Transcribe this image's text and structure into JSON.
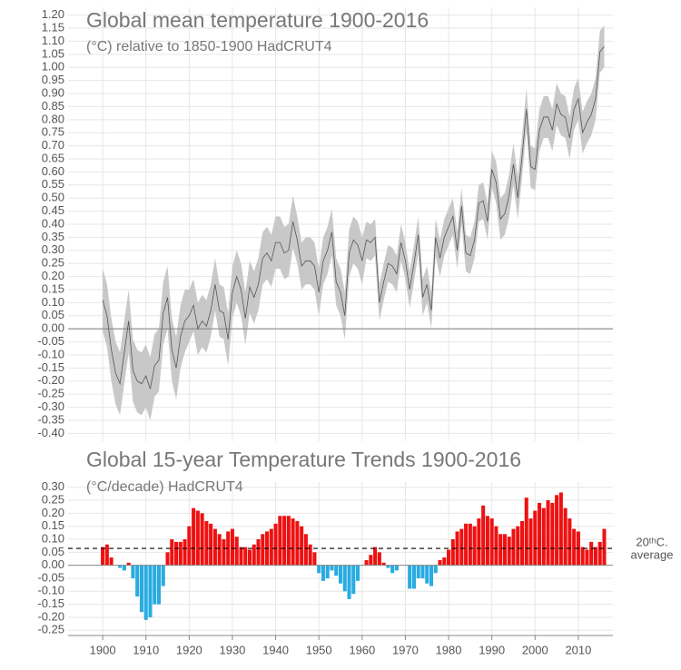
{
  "chart_data": [
    {
      "type": "line",
      "title": "Global mean temperature 1900-2016",
      "subtitle": "(°C) relative to 1850-1900 HadCRUT4",
      "x": [
        1900,
        1901,
        1902,
        1903,
        1904,
        1905,
        1906,
        1907,
        1908,
        1909,
        1910,
        1911,
        1912,
        1913,
        1914,
        1915,
        1916,
        1917,
        1918,
        1919,
        1920,
        1921,
        1922,
        1923,
        1924,
        1925,
        1926,
        1927,
        1928,
        1929,
        1930,
        1931,
        1932,
        1933,
        1934,
        1935,
        1936,
        1937,
        1938,
        1939,
        1940,
        1941,
        1942,
        1943,
        1944,
        1945,
        1946,
        1947,
        1948,
        1949,
        1950,
        1951,
        1952,
        1953,
        1954,
        1955,
        1956,
        1957,
        1958,
        1959,
        1960,
        1961,
        1962,
        1963,
        1964,
        1965,
        1966,
        1967,
        1968,
        1969,
        1970,
        1971,
        1972,
        1973,
        1974,
        1975,
        1976,
        1977,
        1978,
        1979,
        1980,
        1981,
        1982,
        1983,
        1984,
        1985,
        1986,
        1987,
        1988,
        1989,
        1990,
        1991,
        1992,
        1993,
        1994,
        1995,
        1996,
        1997,
        1998,
        1999,
        2000,
        2001,
        2002,
        2003,
        2004,
        2005,
        2006,
        2007,
        2008,
        2009,
        2010,
        2011,
        2012,
        2013,
        2014,
        2015,
        2016
      ],
      "values": [
        0.11,
        0.05,
        -0.08,
        -0.17,
        -0.21,
        -0.09,
        0.03,
        -0.16,
        -0.2,
        -0.21,
        -0.18,
        -0.23,
        -0.14,
        -0.12,
        0.06,
        0.12,
        -0.08,
        -0.15,
        -0.03,
        0.03,
        0.05,
        0.09,
        0.0,
        0.03,
        0.01,
        0.07,
        0.17,
        0.07,
        0.06,
        -0.04,
        0.14,
        0.2,
        0.15,
        0.04,
        0.16,
        0.12,
        0.17,
        0.27,
        0.29,
        0.26,
        0.33,
        0.33,
        0.29,
        0.3,
        0.41,
        0.34,
        0.24,
        0.26,
        0.26,
        0.24,
        0.14,
        0.26,
        0.3,
        0.37,
        0.18,
        0.14,
        0.05,
        0.29,
        0.34,
        0.32,
        0.26,
        0.34,
        0.33,
        0.35,
        0.1,
        0.18,
        0.25,
        0.24,
        0.21,
        0.33,
        0.26,
        0.15,
        0.25,
        0.36,
        0.12,
        0.17,
        0.07,
        0.35,
        0.27,
        0.35,
        0.39,
        0.43,
        0.3,
        0.47,
        0.29,
        0.28,
        0.34,
        0.48,
        0.49,
        0.41,
        0.61,
        0.56,
        0.42,
        0.44,
        0.51,
        0.63,
        0.5,
        0.66,
        0.84,
        0.62,
        0.61,
        0.76,
        0.81,
        0.81,
        0.76,
        0.86,
        0.82,
        0.81,
        0.73,
        0.84,
        0.88,
        0.75,
        0.79,
        0.82,
        0.88,
        1.06,
        1.08
      ],
      "lower": [
        -0.01,
        -0.07,
        -0.2,
        -0.29,
        -0.33,
        -0.21,
        -0.09,
        -0.28,
        -0.32,
        -0.33,
        -0.3,
        -0.35,
        -0.26,
        -0.24,
        -0.06,
        0.0,
        -0.2,
        -0.27,
        -0.15,
        -0.09,
        -0.05,
        -0.01,
        -0.1,
        -0.07,
        -0.09,
        -0.03,
        0.07,
        -0.03,
        -0.04,
        -0.14,
        0.04,
        0.1,
        0.05,
        -0.06,
        0.06,
        0.02,
        0.07,
        0.17,
        0.19,
        0.16,
        0.23,
        0.23,
        0.19,
        0.2,
        0.31,
        0.25,
        0.15,
        0.17,
        0.17,
        0.15,
        0.05,
        0.17,
        0.21,
        0.28,
        0.09,
        0.05,
        -0.04,
        0.2,
        0.25,
        0.23,
        0.17,
        0.27,
        0.26,
        0.28,
        0.03,
        0.11,
        0.18,
        0.17,
        0.14,
        0.26,
        0.19,
        0.08,
        0.18,
        0.29,
        0.05,
        0.1,
        0.0,
        0.28,
        0.2,
        0.28,
        0.32,
        0.36,
        0.23,
        0.4,
        0.22,
        0.21,
        0.27,
        0.41,
        0.42,
        0.34,
        0.54,
        0.48,
        0.34,
        0.36,
        0.43,
        0.55,
        0.42,
        0.58,
        0.76,
        0.54,
        0.53,
        0.68,
        0.73,
        0.73,
        0.68,
        0.78,
        0.74,
        0.73,
        0.65,
        0.76,
        0.8,
        0.67,
        0.71,
        0.74,
        0.8,
        0.98,
        1.0
      ],
      "upper": [
        0.23,
        0.17,
        0.04,
        -0.05,
        -0.09,
        0.03,
        0.15,
        -0.04,
        -0.08,
        -0.09,
        -0.06,
        -0.11,
        -0.02,
        0.0,
        0.18,
        0.24,
        0.04,
        -0.03,
        0.09,
        0.15,
        0.15,
        0.19,
        0.1,
        0.13,
        0.11,
        0.17,
        0.27,
        0.17,
        0.16,
        0.06,
        0.24,
        0.3,
        0.25,
        0.14,
        0.26,
        0.22,
        0.27,
        0.37,
        0.39,
        0.36,
        0.43,
        0.43,
        0.39,
        0.4,
        0.51,
        0.43,
        0.33,
        0.35,
        0.35,
        0.33,
        0.23,
        0.35,
        0.39,
        0.46,
        0.27,
        0.23,
        0.14,
        0.38,
        0.43,
        0.41,
        0.35,
        0.41,
        0.4,
        0.42,
        0.17,
        0.25,
        0.32,
        0.31,
        0.28,
        0.4,
        0.33,
        0.22,
        0.32,
        0.43,
        0.19,
        0.24,
        0.14,
        0.42,
        0.34,
        0.42,
        0.46,
        0.5,
        0.37,
        0.54,
        0.36,
        0.35,
        0.41,
        0.55,
        0.56,
        0.48,
        0.68,
        0.64,
        0.5,
        0.52,
        0.59,
        0.71,
        0.58,
        0.74,
        0.92,
        0.7,
        0.69,
        0.84,
        0.89,
        0.89,
        0.84,
        0.94,
        0.9,
        0.89,
        0.81,
        0.92,
        0.96,
        0.83,
        0.87,
        0.9,
        0.96,
        1.14,
        1.16
      ],
      "color": "#555555",
      "band_color": "#c8c8c8",
      "xlim": [
        1892,
        2018
      ],
      "xticks": [
        1900,
        1910,
        1920,
        1930,
        1940,
        1950,
        1960,
        1970,
        1980,
        1990,
        2000,
        2010
      ],
      "ylim": [
        -0.43,
        1.23
      ],
      "yticks": [
        {
          "value": 1.2,
          "label": "1.20"
        },
        {
          "value": 1.15,
          "label": "1.15"
        },
        {
          "value": 1.1,
          "label": "1.10"
        },
        {
          "value": 1.05,
          "label": "1.05"
        },
        {
          "value": 1,
          "label": "1.00"
        },
        {
          "value": 0.95,
          "label": "0.95"
        },
        {
          "value": 0.9,
          "label": "0.90"
        },
        {
          "value": 0.85,
          "label": "0.85"
        },
        {
          "value": 0.8,
          "label": "0.80"
        },
        {
          "value": 0.75,
          "label": "0.75"
        },
        {
          "value": 0.7,
          "label": "0.70"
        },
        {
          "value": 0.65,
          "label": "0.65"
        },
        {
          "value": 0.6,
          "label": "0.60"
        },
        {
          "value": 0.55,
          "label": "0.55"
        },
        {
          "value": 0.5,
          "label": "0.50"
        },
        {
          "value": 0.45,
          "label": "0.45"
        },
        {
          "value": 0.4,
          "label": "0.40"
        },
        {
          "value": 0.35,
          "label": "0.35"
        },
        {
          "value": 0.3,
          "label": "0.30"
        },
        {
          "value": 0.25,
          "label": "0.25"
        },
        {
          "value": 0.2,
          "label": "0.20"
        },
        {
          "value": 0.15,
          "label": "0.15"
        },
        {
          "value": 0.1,
          "label": "0.10"
        },
        {
          "value": 0.05,
          "label": "0.05"
        },
        {
          "value": 0,
          "label": "0.00"
        },
        {
          "value": -0.05,
          "label": "-0.05"
        },
        {
          "value": -0.1,
          "label": "-0.10"
        },
        {
          "value": -0.15,
          "label": "-0.15"
        },
        {
          "value": -0.2,
          "label": "-0.20"
        },
        {
          "value": -0.25,
          "label": "-0.25"
        },
        {
          "value": -0.3,
          "label": "-0.30"
        },
        {
          "value": -0.35,
          "label": "-0.35"
        },
        {
          "value": -0.4,
          "label": "-0.40"
        }
      ],
      "grid": true
    },
    {
      "type": "bar",
      "title": "Global 15-year Temperature Trends 1900-2016",
      "subtitle": "(°C/decade) HadCRUT4",
      "x": [
        1900,
        1901,
        1902,
        1903,
        1904,
        1905,
        1906,
        1907,
        1908,
        1909,
        1910,
        1911,
        1912,
        1913,
        1914,
        1915,
        1916,
        1917,
        1918,
        1919,
        1920,
        1921,
        1922,
        1923,
        1924,
        1925,
        1926,
        1927,
        1928,
        1929,
        1930,
        1931,
        1932,
        1933,
        1934,
        1935,
        1936,
        1937,
        1938,
        1939,
        1940,
        1941,
        1942,
        1943,
        1944,
        1945,
        1946,
        1947,
        1948,
        1949,
        1950,
        1951,
        1952,
        1953,
        1954,
        1955,
        1956,
        1957,
        1958,
        1959,
        1960,
        1961,
        1962,
        1963,
        1964,
        1965,
        1966,
        1967,
        1968,
        1969,
        1970,
        1971,
        1972,
        1973,
        1974,
        1975,
        1976,
        1977,
        1978,
        1979,
        1980,
        1981,
        1982,
        1983,
        1984,
        1985,
        1986,
        1987,
        1988,
        1989,
        1990,
        1991,
        1992,
        1993,
        1994,
        1995,
        1996,
        1997,
        1998,
        1999,
        2000,
        2001,
        2002,
        2003,
        2004,
        2005,
        2006,
        2007,
        2008,
        2009,
        2010,
        2011,
        2012,
        2013,
        2014,
        2015,
        2016
      ],
      "values": [
        0.07,
        0.08,
        0.03,
        0.0,
        -0.01,
        -0.02,
        0.01,
        -0.05,
        -0.12,
        -0.18,
        -0.21,
        -0.2,
        -0.15,
        -0.15,
        -0.08,
        0.05,
        0.1,
        0.09,
        0.09,
        0.1,
        0.15,
        0.22,
        0.21,
        0.2,
        0.17,
        0.16,
        0.14,
        0.12,
        0.1,
        0.13,
        0.14,
        0.11,
        0.07,
        0.07,
        0.06,
        0.08,
        0.1,
        0.12,
        0.13,
        0.14,
        0.16,
        0.19,
        0.19,
        0.19,
        0.18,
        0.17,
        0.15,
        0.12,
        0.08,
        0.05,
        -0.03,
        -0.06,
        -0.05,
        -0.02,
        -0.04,
        -0.07,
        -0.1,
        -0.13,
        -0.11,
        -0.06,
        0.0,
        0.02,
        0.04,
        0.07,
        0.05,
        0.01,
        -0.01,
        -0.03,
        -0.02,
        0.0,
        0.0,
        -0.09,
        -0.09,
        -0.05,
        -0.05,
        -0.07,
        -0.08,
        -0.03,
        0.02,
        0.03,
        0.06,
        0.1,
        0.13,
        0.14,
        0.16,
        0.16,
        0.15,
        0.18,
        0.23,
        0.19,
        0.18,
        0.15,
        0.12,
        0.12,
        0.11,
        0.14,
        0.15,
        0.17,
        0.26,
        0.18,
        0.21,
        0.24,
        0.22,
        0.25,
        0.24,
        0.27,
        0.28,
        0.22,
        0.18,
        0.14,
        0.13,
        0.07,
        0.06,
        0.09,
        0.07,
        0.09,
        0.14
      ],
      "positive_color": "#ee1111",
      "negative_color": "#29abe2",
      "reference_line": {
        "value": 0.065,
        "label": [
          "20ᵗʰC.",
          "average"
        ]
      },
      "xlim": [
        1892,
        2018
      ],
      "xticks": [
        1900,
        1910,
        1920,
        1930,
        1940,
        1950,
        1960,
        1970,
        1980,
        1990,
        2000,
        2010
      ],
      "ylim": [
        -0.27,
        0.32
      ],
      "yticks": [
        {
          "value": 0.3,
          "label": "0.30"
        },
        {
          "value": 0.25,
          "label": "0.25"
        },
        {
          "value": 0.2,
          "label": "0.20"
        },
        {
          "value": 0.15,
          "label": "0.15"
        },
        {
          "value": 0.1,
          "label": "0.10"
        },
        {
          "value": 0.05,
          "label": "0.05"
        },
        {
          "value": 0,
          "label": "0.00"
        },
        {
          "value": -0.05,
          "label": "-0.05"
        },
        {
          "value": -0.1,
          "label": "-0.10"
        },
        {
          "value": -0.15,
          "label": "-0.15"
        },
        {
          "value": -0.2,
          "label": "-0.20"
        },
        {
          "value": -0.25,
          "label": "-0.25"
        }
      ],
      "grid": true
    }
  ]
}
